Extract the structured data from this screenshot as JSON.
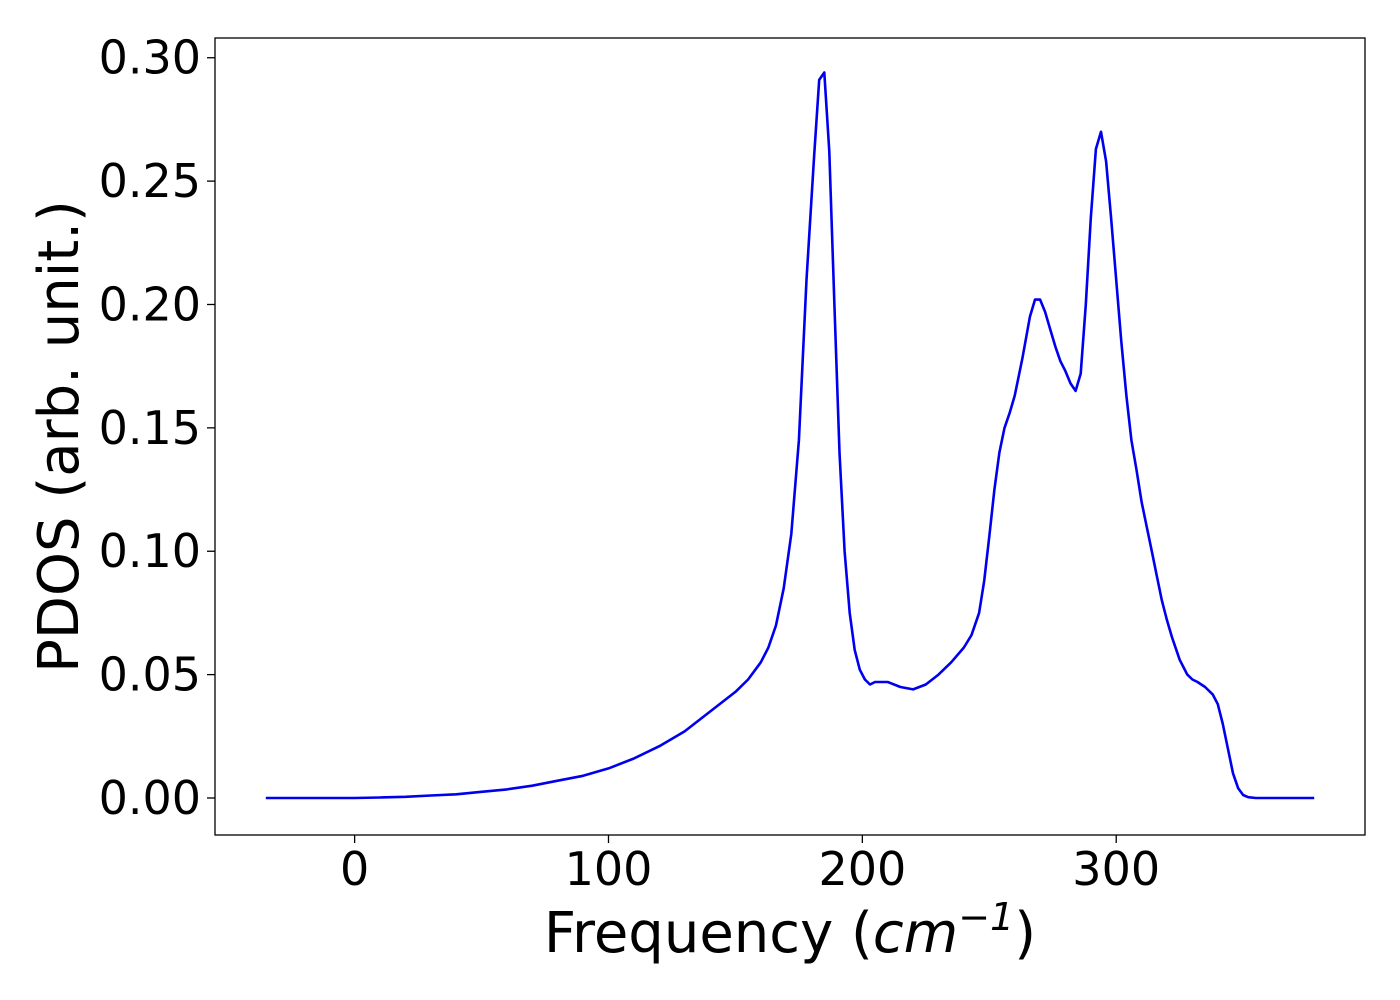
{
  "chart_data": {
    "type": "line",
    "title": "",
    "xlabel_main": "Frequency (",
    "xlabel_unit": "cm",
    "xlabel_exp": "−1",
    "xlabel_close": ")",
    "ylabel": "PDOS (arb. unit.)",
    "xlim": [
      -55,
      398
    ],
    "ylim": [
      -0.015,
      0.308
    ],
    "x_ticks": [
      0,
      100,
      200,
      300
    ],
    "x_tick_labels": [
      "0",
      "100",
      "200",
      "300"
    ],
    "y_ticks": [
      0.0,
      0.05,
      0.1,
      0.15,
      0.2,
      0.25,
      0.3
    ],
    "y_tick_labels": [
      "0.00",
      "0.05",
      "0.10",
      "0.15",
      "0.20",
      "0.25",
      "0.30"
    ],
    "grid": false,
    "legend": "none",
    "series": [
      {
        "color": "#0000ee",
        "x": [
          -35,
          -10,
          0,
          10,
          20,
          30,
          40,
          50,
          60,
          70,
          80,
          90,
          100,
          110,
          120,
          130,
          140,
          150,
          155,
          160,
          163,
          166,
          169,
          172,
          175,
          178,
          181,
          183,
          185,
          187,
          189,
          191,
          193,
          195,
          197,
          199,
          201,
          203,
          205,
          210,
          215,
          220,
          225,
          230,
          235,
          240,
          243,
          246,
          248,
          250,
          252,
          254,
          256,
          258,
          260,
          263,
          266,
          268,
          270,
          272,
          274,
          276,
          278,
          280,
          282,
          284,
          286,
          288,
          290,
          292,
          294,
          296,
          298,
          300,
          302,
          304,
          306,
          308,
          310,
          312,
          314,
          316,
          318,
          320,
          322,
          325,
          328,
          330,
          332,
          335,
          338,
          340,
          342,
          344,
          346,
          348,
          350,
          352,
          355,
          360,
          370,
          378
        ],
        "y": [
          0.0,
          0.0,
          0.0,
          0.0002,
          0.0005,
          0.001,
          0.0015,
          0.0025,
          0.0035,
          0.005,
          0.007,
          0.009,
          0.012,
          0.016,
          0.021,
          0.027,
          0.035,
          0.043,
          0.048,
          0.055,
          0.061,
          0.07,
          0.085,
          0.107,
          0.145,
          0.21,
          0.26,
          0.291,
          0.294,
          0.262,
          0.2,
          0.14,
          0.1,
          0.075,
          0.06,
          0.052,
          0.048,
          0.046,
          0.047,
          0.047,
          0.045,
          0.044,
          0.046,
          0.05,
          0.055,
          0.061,
          0.066,
          0.075,
          0.088,
          0.106,
          0.125,
          0.14,
          0.15,
          0.156,
          0.163,
          0.178,
          0.195,
          0.202,
          0.202,
          0.197,
          0.19,
          0.183,
          0.177,
          0.173,
          0.168,
          0.165,
          0.172,
          0.2,
          0.235,
          0.263,
          0.27,
          0.258,
          0.235,
          0.21,
          0.185,
          0.163,
          0.145,
          0.133,
          0.12,
          0.11,
          0.1,
          0.09,
          0.08,
          0.072,
          0.065,
          0.056,
          0.05,
          0.048,
          0.047,
          0.045,
          0.042,
          0.038,
          0.03,
          0.02,
          0.01,
          0.004,
          0.0012,
          0.0003,
          0.0,
          0.0,
          0.0,
          0.0
        ]
      }
    ]
  }
}
